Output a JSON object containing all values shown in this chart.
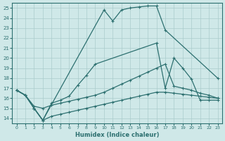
{
  "xlabel": "Humidex (Indice chaleur)",
  "background_color": "#cfe8e8",
  "line_color": "#2d7070",
  "grid_color": "#b8d8d8",
  "xlim": [
    -0.5,
    23.5
  ],
  "ylim": [
    13.5,
    25.5
  ],
  "xticks": [
    0,
    1,
    2,
    3,
    4,
    5,
    6,
    7,
    8,
    9,
    10,
    11,
    12,
    13,
    14,
    15,
    16,
    17,
    18,
    19,
    20,
    21,
    22,
    23
  ],
  "yticks": [
    14,
    15,
    16,
    17,
    18,
    19,
    20,
    21,
    22,
    23,
    24,
    25
  ],
  "line_peak": {
    "x": [
      0,
      1,
      2,
      3,
      10,
      11,
      12,
      13,
      14,
      15,
      16,
      17,
      23
    ],
    "y": [
      16.8,
      16.3,
      15.0,
      13.8,
      24.8,
      23.7,
      24.8,
      25.0,
      25.1,
      25.2,
      25.2,
      22.8,
      18.0
    ]
  },
  "line_mid_high": {
    "x": [
      0,
      1,
      2,
      3,
      4,
      5,
      6,
      7,
      8,
      9,
      16,
      17,
      18,
      19,
      20,
      21,
      22,
      23
    ],
    "y": [
      16.8,
      16.3,
      15.0,
      13.8,
      15.5,
      15.8,
      16.2,
      17.3,
      18.3,
      19.4,
      21.5,
      17.0,
      20.0,
      19.0,
      17.9,
      15.8,
      15.8,
      15.8
    ]
  },
  "line_mid_low": {
    "x": [
      0,
      1,
      2,
      3,
      4,
      5,
      6,
      7,
      8,
      9,
      10,
      11,
      12,
      13,
      14,
      15,
      16,
      17,
      18,
      19,
      20,
      21,
      22,
      23
    ],
    "y": [
      16.8,
      16.3,
      15.2,
      15.0,
      15.3,
      15.5,
      15.7,
      15.9,
      16.1,
      16.3,
      16.6,
      17.0,
      17.4,
      17.8,
      18.2,
      18.6,
      19.0,
      19.4,
      17.2,
      17.0,
      16.8,
      16.5,
      16.3,
      16.0
    ]
  },
  "line_bottom": {
    "x": [
      0,
      1,
      2,
      3,
      4,
      5,
      6,
      7,
      8,
      9,
      10,
      11,
      12,
      13,
      14,
      15,
      16,
      17,
      18,
      19,
      20,
      21,
      22,
      23
    ],
    "y": [
      16.8,
      16.3,
      15.0,
      13.8,
      14.2,
      14.4,
      14.6,
      14.8,
      15.0,
      15.2,
      15.4,
      15.6,
      15.8,
      16.0,
      16.2,
      16.4,
      16.6,
      16.6,
      16.5,
      16.4,
      16.3,
      16.2,
      16.1,
      16.0
    ]
  }
}
